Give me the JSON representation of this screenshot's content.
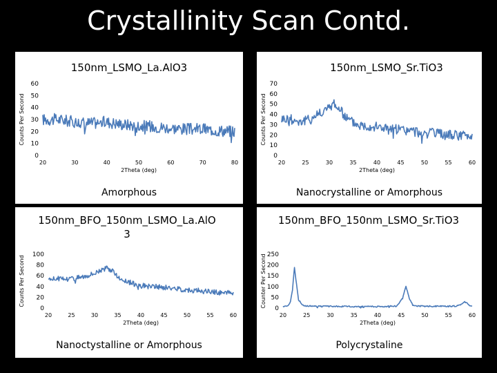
{
  "slide": {
    "title": "Crystallinity Scan Contd.",
    "background": "#000000",
    "panel_color": "#ffffff",
    "line_color": "#4a7ab9"
  },
  "chart_data": [
    {
      "type": "line",
      "title": "150nm_LSMO_La.AlO3",
      "xlabel": "2Theta (deg)",
      "ylabel": "Counts Per Second",
      "xlim": [
        20,
        80
      ],
      "ylim": [
        0,
        60
      ],
      "xticks": [
        20,
        30,
        40,
        50,
        60,
        70,
        80
      ],
      "yticks": [
        0,
        10,
        20,
        30,
        40,
        50,
        60
      ],
      "xtick_labels": [
        "20",
        "30",
        "40",
        "50",
        "60",
        "70",
        "80"
      ],
      "ytick_labels": [
        "0",
        "10",
        "20",
        "30",
        "40",
        "50",
        "60"
      ],
      "caption": "Amorphous",
      "series": [
        {
          "name": "150nm_LSMO_La.AlO3",
          "x": [
            20,
            25,
            30,
            35,
            40,
            45,
            50,
            55,
            60,
            65,
            70,
            75,
            80
          ],
          "y": [
            30,
            30,
            28,
            27,
            28,
            26,
            25,
            24,
            23,
            22,
            22,
            21,
            20
          ],
          "noise": 5
        }
      ]
    },
    {
      "type": "line",
      "title": "150nm_LSMO_Sr.TiO3",
      "xlabel": "2Theta (deg)",
      "ylabel": "Counts Per Second",
      "xlim": [
        20,
        60
      ],
      "ylim": [
        0,
        70
      ],
      "xticks": [
        20,
        25,
        30,
        35,
        40,
        45,
        50,
        55,
        60
      ],
      "yticks": [
        0,
        10,
        20,
        30,
        40,
        50,
        60,
        70
      ],
      "xtick_labels": [
        "20",
        "25",
        "30",
        "35",
        "40",
        "45",
        "50",
        "55",
        "60"
      ],
      "ytick_labels": [
        "0",
        "10",
        "20",
        "30",
        "40",
        "50",
        "60",
        "70"
      ],
      "caption": "Nanocrystalline or Amorphous",
      "series": [
        {
          "name": "150nm_LSMO_Sr.TiO3",
          "x": [
            20,
            22,
            24,
            26,
            28,
            30,
            31,
            32,
            33,
            34,
            36,
            40,
            45,
            50,
            55,
            60
          ],
          "y": [
            36,
            35,
            33,
            35,
            42,
            46,
            52,
            45,
            40,
            35,
            30,
            28,
            25,
            22,
            20,
            19
          ],
          "noise": 5
        }
      ]
    },
    {
      "type": "line",
      "title": "150nm_BFO_150nm_LSMO_La.AlO3",
      "xlabel": "2Theta (deg)",
      "ylabel": "Counts Per Second",
      "xlim": [
        20,
        60
      ],
      "ylim": [
        0,
        100
      ],
      "xticks": [
        20,
        25,
        30,
        35,
        40,
        45,
        50,
        55,
        60
      ],
      "yticks": [
        0,
        20,
        40,
        60,
        80,
        100
      ],
      "xtick_labels": [
        "20",
        "25",
        "30",
        "35",
        "40",
        "45",
        "50",
        "55",
        "60"
      ],
      "ytick_labels": [
        "0",
        "20",
        "40",
        "60",
        "80",
        "100"
      ],
      "caption": "Nanoctystalline or Amorphous",
      "series": [
        {
          "name": "150nm_BFO_150nm_LSMO_La.AlO3",
          "x": [
            20,
            22,
            24,
            26,
            28,
            30,
            31,
            32,
            33,
            34,
            35,
            36,
            38,
            40,
            45,
            50,
            55,
            60
          ],
          "y": [
            55,
            55,
            54,
            56,
            60,
            65,
            70,
            72,
            74,
            68,
            58,
            52,
            46,
            42,
            38,
            34,
            30,
            28
          ],
          "noise": 5
        }
      ]
    },
    {
      "type": "line",
      "title": "150nm_BFO_150nm_LSMO_Sr.TiO3",
      "xlabel": "2Theta (deg)",
      "ylabel": "Counter Per Second",
      "xlim": [
        20,
        60
      ],
      "ylim": [
        0,
        250
      ],
      "xticks": [
        20,
        25,
        30,
        35,
        40,
        45,
        50,
        55,
        60
      ],
      "yticks": [
        0,
        50,
        100,
        150,
        200,
        250
      ],
      "xtick_labels": [
        "20",
        "25",
        "30",
        "35",
        "40",
        "45",
        "50",
        "55",
        "60"
      ],
      "ytick_labels": [
        "0",
        "50",
        "100",
        "150",
        "200",
        "250"
      ],
      "caption": "Polycrystaline",
      "series": [
        {
          "name": "150nm_BFO_150nm_LSMO_Sr.TiO3",
          "x": [
            20,
            21,
            21.5,
            22,
            22.4,
            22.8,
            23.3,
            24,
            25,
            27,
            30,
            35,
            40,
            44,
            45.3,
            46,
            46.7,
            47.5,
            49,
            55,
            57,
            58.5,
            59.5,
            60
          ],
          "y": [
            8,
            10,
            25,
            80,
            195,
            120,
            40,
            15,
            10,
            8,
            8,
            7,
            7,
            9,
            45,
            100,
            45,
            12,
            9,
            8,
            10,
            30,
            12,
            8
          ],
          "noise": 3
        }
      ]
    }
  ]
}
